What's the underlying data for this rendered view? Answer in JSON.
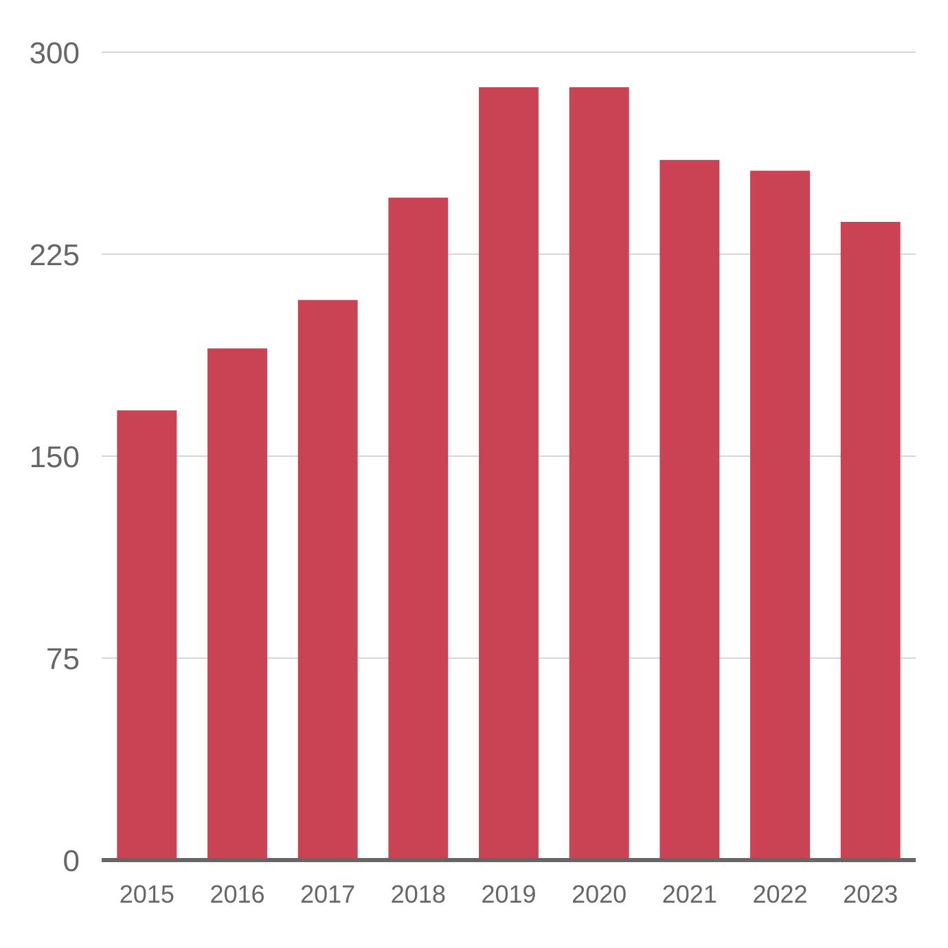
{
  "chart_data": {
    "type": "bar",
    "title": "",
    "xlabel": "",
    "ylabel": "",
    "categories": [
      "2015",
      "2016",
      "2017",
      "2018",
      "2019",
      "2020",
      "2021",
      "2022",
      "2023"
    ],
    "values": [
      167,
      190,
      208,
      246,
      287,
      287,
      260,
      256,
      237
    ],
    "ylim": [
      0,
      300
    ],
    "yticks": [
      0,
      75,
      150,
      225,
      300
    ],
    "grid": true,
    "legend": "none",
    "colors": {
      "bar": "#c94355",
      "grid": "#c8c8c8",
      "axis": "#666666",
      "text": "#666666"
    }
  }
}
